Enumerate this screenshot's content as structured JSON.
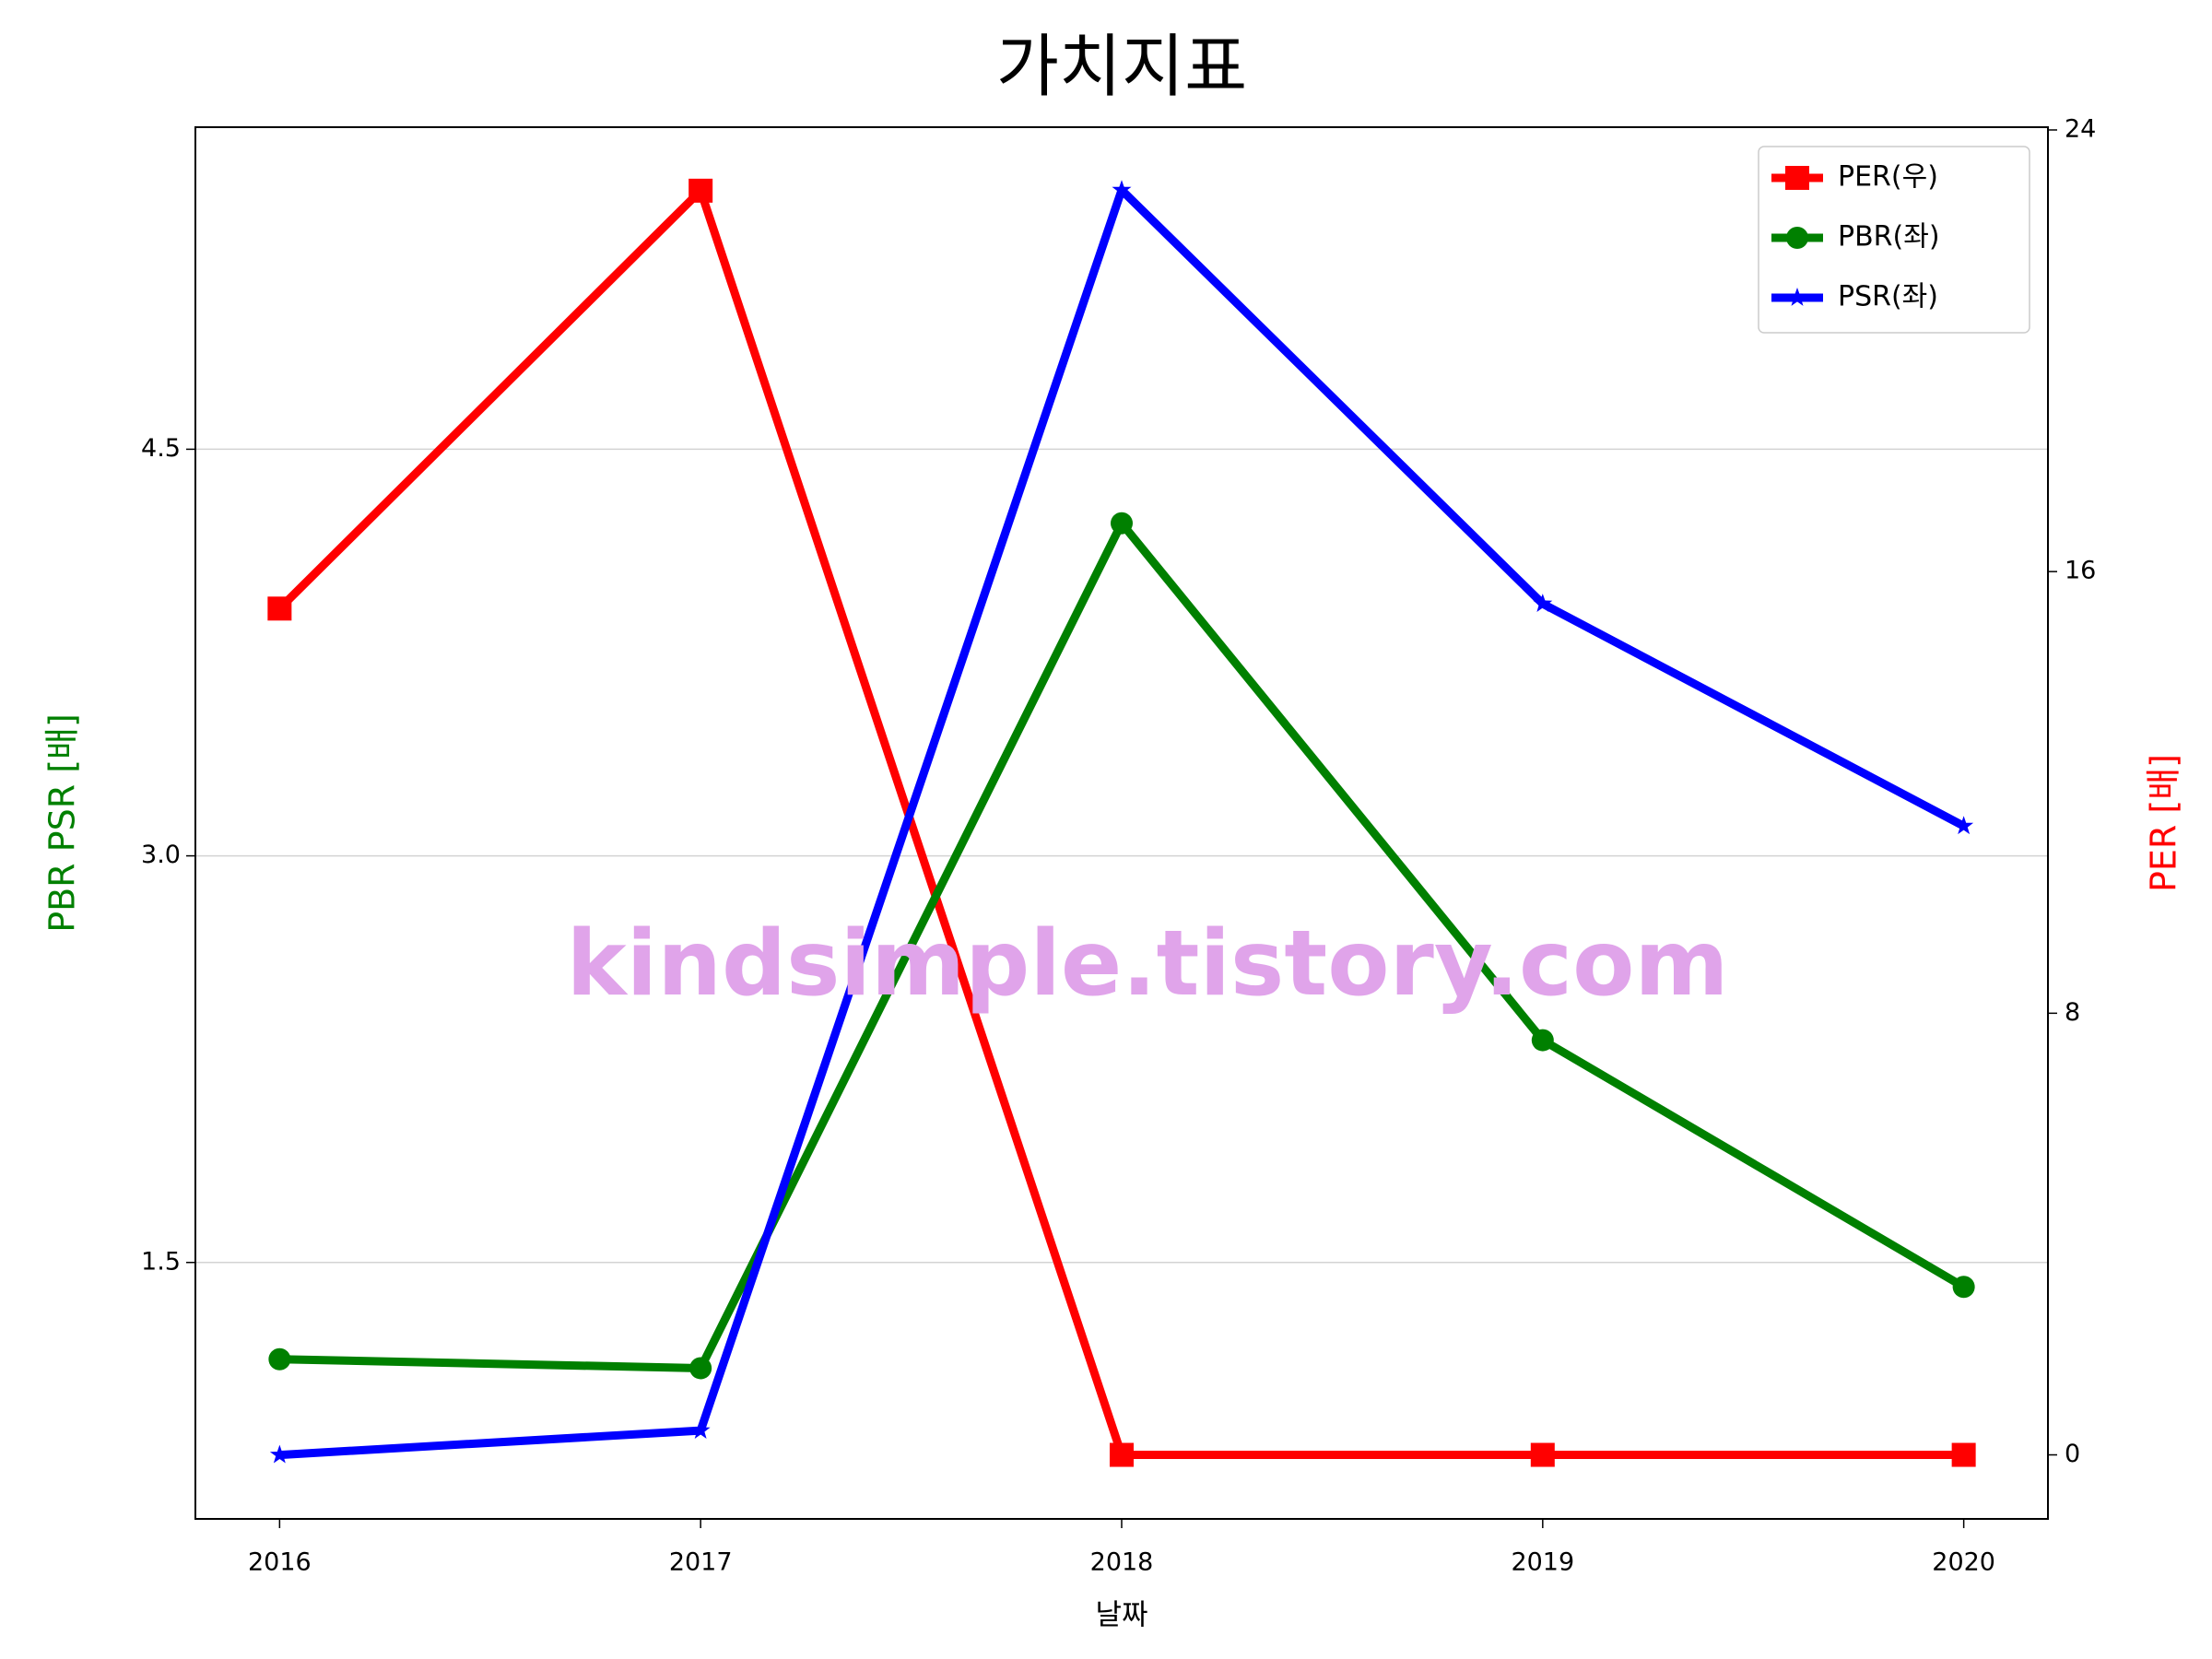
{
  "chart_data": {
    "type": "line",
    "title": "가치지표",
    "x_label": "날짜",
    "y_label": "PBR PSR [배]",
    "y2_label": "PER [배]",
    "y_label_color": "green",
    "y2_label_color": "red",
    "x": [
      2016,
      2017,
      2018,
      2019,
      2020
    ],
    "xlim": [
      2015.8,
      2020.2
    ],
    "xticks": [
      2016,
      2017,
      2018,
      2019,
      2020
    ],
    "ylim": [
      0.554,
      5.688
    ],
    "yticks": [
      1.5,
      {
        "value": 3,
        "label": "3.0"
      },
      4.5
    ],
    "y2lim": [
      -1.16,
      24.05
    ],
    "y2ticks": [
      0,
      8,
      16,
      24
    ],
    "grid": true,
    "legend": "upper right",
    "series": [
      {
        "name": "PER(우)",
        "color": "red",
        "marker": "square",
        "axis": "y2",
        "values": [
          15.33,
          22.9,
          0,
          0,
          0
        ]
      },
      {
        "name": "PBR(좌)",
        "color": "green",
        "marker": "circle",
        "values": [
          1.143,
          1.11,
          4.227,
          2.32,
          1.41
        ]
      },
      {
        "name": "PSR(좌)",
        "color": "blue",
        "marker": "star",
        "values": [
          0.79,
          0.88,
          5.456,
          3.93,
          3.11
        ]
      }
    ],
    "annotation": "kindsimple.tistory.com",
    "annotation_color": "#e0a4ea"
  }
}
